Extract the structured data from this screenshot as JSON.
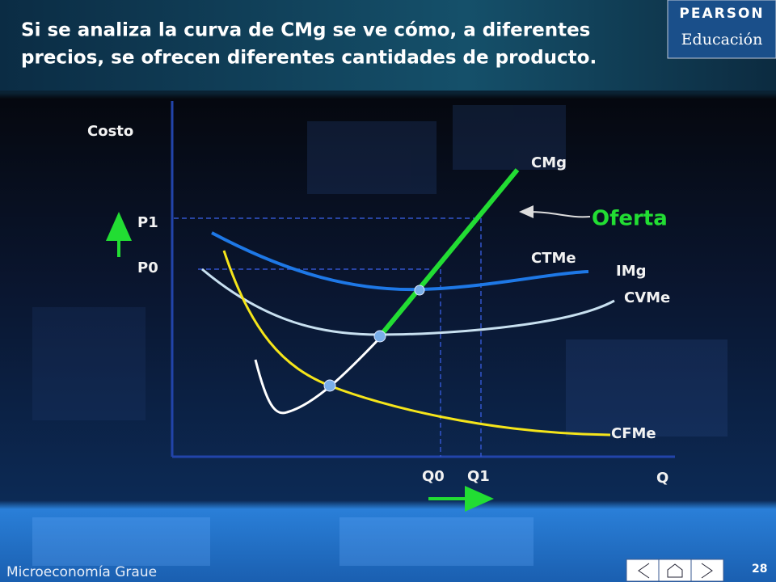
{
  "header": {
    "title_lines": [
      "Si se analiza la curva de CMg se ve cómo, a diferentes",
      "precios, se ofrecen diferentes cantidades de producto."
    ],
    "logo_top": "PEARSON",
    "logo_bottom": "Educación"
  },
  "diagram": {
    "y_axis": "Costo",
    "x_axis": "Q",
    "prices": [
      "P1",
      "P0"
    ],
    "quantities": [
      "Q0",
      "Q1"
    ],
    "curves": {
      "cmg": "CMg",
      "ctme": "CTMe",
      "img": "IMg",
      "cvme": "CVMe",
      "cfme": "CFMe"
    },
    "supply": "Oferta"
  },
  "footer": {
    "brand": "Microeconomía Graue",
    "page": "28"
  }
}
